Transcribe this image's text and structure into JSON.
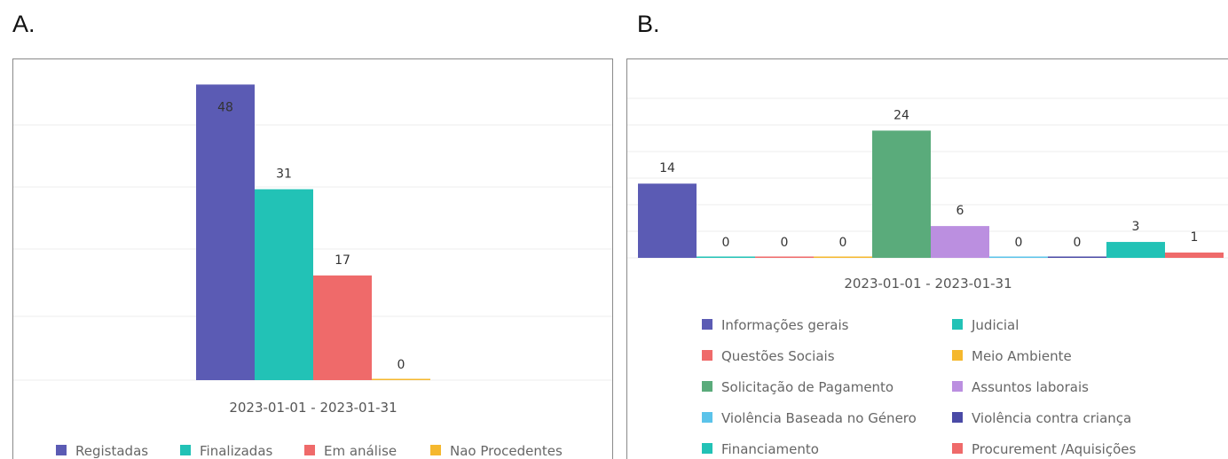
{
  "panels": [
    {
      "label": "A."
    },
    {
      "label": "B."
    }
  ],
  "chart_data": [
    {
      "type": "bar",
      "categories": [
        "2023-01-01 - 2023-01-31"
      ],
      "series": [
        {
          "name": "Registadas",
          "values": [
            48
          ],
          "color": "#5b5bb4"
        },
        {
          "name": "Finalizadas",
          "values": [
            31
          ],
          "color": "#22c2b6"
        },
        {
          "name": "Em análise",
          "values": [
            17
          ],
          "color": "#ef6a6a"
        },
        {
          "name": "Nao Procedentes",
          "values": [
            0
          ],
          "color": "#f5b82e"
        }
      ],
      "ylim": [
        0,
        50
      ],
      "grid": true,
      "legend": "bottom"
    },
    {
      "type": "bar",
      "categories": [
        "2023-01-01 - 2023-01-31"
      ],
      "series": [
        {
          "name": "Informações gerais",
          "values": [
            14
          ],
          "color": "#5b5bb4"
        },
        {
          "name": "Judicial",
          "values": [
            0
          ],
          "color": "#22c2b6"
        },
        {
          "name": "Questões Sociais",
          "values": [
            0
          ],
          "color": "#ef6a6a"
        },
        {
          "name": "Meio Ambiente",
          "values": [
            0
          ],
          "color": "#f5b82e"
        },
        {
          "name": "Solicitação de Pagamento",
          "values": [
            24
          ],
          "color": "#5aab7b"
        },
        {
          "name": "Assuntos laborais",
          "values": [
            6
          ],
          "color": "#bb8fe0"
        },
        {
          "name": "Violência Baseada no Género",
          "values": [
            0
          ],
          "color": "#5bc3ea"
        },
        {
          "name": "Violência contra criança",
          "values": [
            0
          ],
          "color": "#4a4aa6"
        },
        {
          "name": "Financiamento",
          "values": [
            3
          ],
          "color": "#22c2b6"
        },
        {
          "name": "Procurement /Aquisições",
          "values": [
            1
          ],
          "color": "#ef6a6a"
        }
      ],
      "ylim": [
        0,
        30
      ],
      "grid": true,
      "legend": "bottom"
    }
  ]
}
